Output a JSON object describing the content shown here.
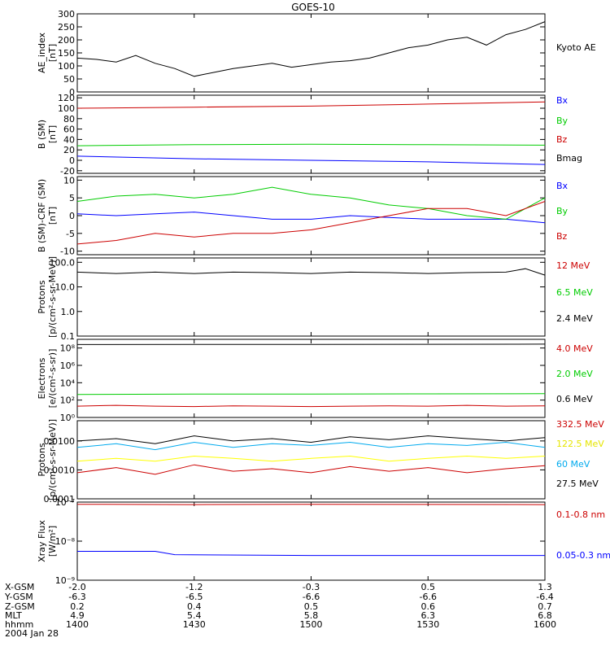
{
  "title": "GOES-10",
  "chart_data": [
    {
      "type": "line",
      "ylabel": [
        "AE_index",
        "[nT]"
      ],
      "ylim": [
        0,
        300
      ],
      "yticks": [
        "0",
        "50",
        "100",
        "150",
        "200",
        "250",
        "300"
      ],
      "yticks_values": [
        0,
        50,
        100,
        150,
        200,
        250,
        300
      ],
      "series": [
        {
          "name": "Kyoto AE",
          "color": "#000000",
          "x": [
            1400,
            1405,
            1410,
            1415,
            1420,
            1425,
            1430,
            1435,
            1440,
            1445,
            1450,
            1455,
            1500,
            1505,
            1510,
            1515,
            1520,
            1525,
            1530,
            1535,
            1540,
            1545,
            1550,
            1555,
            1600
          ],
          "y": [
            130,
            125,
            115,
            140,
            110,
            90,
            60,
            75,
            90,
            100,
            110,
            95,
            105,
            115,
            120,
            130,
            150,
            170,
            180,
            200,
            210,
            180,
            220,
            240,
            270
          ]
        }
      ]
    },
    {
      "type": "line",
      "ylabel": [
        "B (SM)",
        "[nT]"
      ],
      "ylim": [
        -25,
        125
      ],
      "yticks": [
        "-20",
        "0",
        "20",
        "40",
        "60",
        "80",
        "100",
        "120"
      ],
      "yticks_values": [
        -20,
        0,
        20,
        40,
        60,
        80,
        100,
        120
      ],
      "series": [
        {
          "name": "Bx",
          "color": "#0000ff",
          "x": [
            1400,
            1430,
            1500,
            1530,
            1600
          ],
          "y": [
            8,
            3,
            0,
            -3,
            -8
          ]
        },
        {
          "name": "By",
          "color": "#00cc00",
          "x": [
            1400,
            1430,
            1500,
            1530,
            1600
          ],
          "y": [
            28,
            30,
            31,
            30,
            29
          ]
        },
        {
          "name": "Bz",
          "color": "#cc0000",
          "x": [
            1400,
            1430,
            1500,
            1530,
            1600
          ],
          "y": [
            100,
            102,
            104,
            108,
            112
          ]
        },
        {
          "name": "Bmag",
          "color": "#000000",
          "x": [],
          "y": []
        }
      ]
    },
    {
      "type": "line",
      "ylabel": [
        "B (SM)-CRF (SM)",
        "[nT]"
      ],
      "ylim": [
        -11,
        11
      ],
      "yticks": [
        "-10",
        "-5",
        "0",
        "5",
        "10"
      ],
      "yticks_values": [
        -10,
        -5,
        0,
        5,
        10
      ],
      "series": [
        {
          "name": "Bx",
          "color": "#0000ff",
          "x": [
            1400,
            1410,
            1420,
            1430,
            1440,
            1450,
            1500,
            1510,
            1520,
            1530,
            1540,
            1550,
            1600
          ],
          "y": [
            0.5,
            0,
            0.5,
            1,
            0,
            -1,
            -1,
            0,
            -0.5,
            -1,
            -1,
            -1,
            -2
          ]
        },
        {
          "name": "By",
          "color": "#00cc00",
          "x": [
            1400,
            1410,
            1420,
            1430,
            1440,
            1450,
            1500,
            1510,
            1520,
            1530,
            1540,
            1550,
            1600
          ],
          "y": [
            4,
            5.5,
            6,
            5,
            6,
            8,
            6,
            5,
            3,
            2,
            0,
            -1,
            5
          ]
        },
        {
          "name": "Bz",
          "color": "#cc0000",
          "x": [
            1400,
            1410,
            1420,
            1430,
            1440,
            1450,
            1500,
            1510,
            1520,
            1530,
            1540,
            1550,
            1600
          ],
          "y": [
            -8,
            -7,
            -5,
            -6,
            -5,
            -5,
            -4,
            -2,
            0,
            2,
            2,
            0,
            4
          ]
        }
      ]
    },
    {
      "type": "line",
      "ylabel": [
        "Protons",
        "[p/(cm²-s-sr-MeV)]"
      ],
      "yscale": "log",
      "ylim": [
        0.1,
        150
      ],
      "yticks": [
        "0.1",
        "1.0",
        "10.0",
        "100.0"
      ],
      "yticks_values": [
        0.1,
        1,
        10,
        100
      ],
      "series": [
        {
          "name": "12 MeV",
          "color": "#cc0000",
          "x": [],
          "y": []
        },
        {
          "name": "6.5 MeV",
          "color": "#00cc00",
          "x": [],
          "y": []
        },
        {
          "name": "2.4 MeV",
          "color": "#000000",
          "x": [
            1400,
            1410,
            1420,
            1430,
            1440,
            1450,
            1500,
            1510,
            1520,
            1530,
            1540,
            1550,
            1555,
            1600
          ],
          "y": [
            40,
            35,
            40,
            35,
            40,
            38,
            35,
            40,
            38,
            35,
            38,
            40,
            55,
            30
          ]
        }
      ]
    },
    {
      "type": "line",
      "ylabel": [
        "Electrons",
        "[e/(cm²-s-sr)]"
      ],
      "yscale": "log",
      "ylim": [
        1,
        1000000000
      ],
      "yticks": [
        "10⁰",
        "10²",
        "10⁴",
        "10⁶",
        "10⁸"
      ],
      "yticks_values": [
        1,
        100,
        10000,
        1000000,
        100000000
      ],
      "series": [
        {
          "name": "4.0 MeV",
          "color": "#cc0000",
          "x": [
            1400,
            1410,
            1420,
            1430,
            1440,
            1450,
            1500,
            1510,
            1520,
            1530,
            1540,
            1550,
            1600
          ],
          "y": [
            20,
            25,
            20,
            18,
            22,
            20,
            18,
            20,
            22,
            20,
            25,
            20,
            22
          ]
        },
        {
          "name": "2.0 MeV",
          "color": "#00cc00",
          "x": [
            1400,
            1430,
            1500,
            1530,
            1600
          ],
          "y": [
            450,
            500,
            500,
            520,
            550
          ]
        },
        {
          "name": "0.6 MeV",
          "color": "#000000",
          "x": [
            1400,
            1430,
            1500,
            1530,
            1600
          ],
          "y": [
            250000000,
            260000000,
            260000000,
            270000000,
            280000000
          ]
        }
      ]
    },
    {
      "type": "line",
      "ylabel": [
        "Protons",
        "[p/(cm²-s-sr-MeV)]"
      ],
      "yscale": "log",
      "ylim": [
        0.0001,
        0.05
      ],
      "yticks": [
        "0.0001",
        "0.0010",
        "0.0100"
      ],
      "yticks_values": [
        0.0001,
        0.001,
        0.01
      ],
      "series": [
        {
          "name": "332.5 MeV",
          "color": "#cc0000",
          "x": [
            1400,
            1410,
            1420,
            1430,
            1440,
            1450,
            1500,
            1510,
            1520,
            1530,
            1540,
            1550,
            1600
          ],
          "y": [
            0.0008,
            0.0012,
            0.0007,
            0.0015,
            0.0009,
            0.0011,
            0.0008,
            0.0013,
            0.0009,
            0.0012,
            0.0008,
            0.0011,
            0.0014
          ]
        },
        {
          "name": "122.5 MeV",
          "color": "#ffff00",
          "x": [
            1400,
            1410,
            1420,
            1430,
            1440,
            1450,
            1500,
            1510,
            1520,
            1530,
            1540,
            1550,
            1600
          ],
          "y": [
            0.002,
            0.0025,
            0.002,
            0.003,
            0.0025,
            0.002,
            0.0025,
            0.003,
            0.002,
            0.0025,
            0.003,
            0.0025,
            0.003
          ]
        },
        {
          "name": "60 MeV",
          "color": "#00aaee",
          "x": [
            1400,
            1410,
            1420,
            1430,
            1440,
            1450,
            1500,
            1510,
            1520,
            1530,
            1540,
            1550,
            1600
          ],
          "y": [
            0.006,
            0.008,
            0.005,
            0.009,
            0.006,
            0.008,
            0.007,
            0.009,
            0.006,
            0.008,
            0.007,
            0.009,
            0.006
          ]
        },
        {
          "name": "27.5 MeV",
          "color": "#000000",
          "x": [
            1400,
            1410,
            1420,
            1430,
            1440,
            1450,
            1500,
            1510,
            1520,
            1530,
            1540,
            1550,
            1600
          ],
          "y": [
            0.01,
            0.012,
            0.008,
            0.015,
            0.01,
            0.012,
            0.009,
            0.014,
            0.011,
            0.015,
            0.012,
            0.01,
            0.013
          ]
        }
      ]
    },
    {
      "type": "line",
      "ylabel": [
        "Xray Flux",
        "[W/m²]"
      ],
      "yscale": "log",
      "ylim": [
        1e-09,
        1e-07
      ],
      "yticks": [
        "10⁻⁹",
        "10⁻⁸",
        "10⁻⁷"
      ],
      "yticks_values": [
        1e-09,
        1e-08,
        1e-07
      ],
      "series": [
        {
          "name": "0.1-0.8 nm",
          "color": "#cc0000",
          "x": [
            1400,
            1430,
            1500,
            1530,
            1600
          ],
          "y": [
            8.8e-08,
            8.6e-08,
            8.8e-08,
            8.7e-08,
            8.6e-08
          ]
        },
        {
          "name": "0.05-0.3 nm",
          "color": "#0000ff",
          "x": [
            1400,
            1420,
            1425,
            1500,
            1550,
            1600
          ],
          "y": [
            5.5e-09,
            5.5e-09,
            4.5e-09,
            4.3e-09,
            4.3e-09,
            4.3e-09
          ]
        }
      ]
    }
  ],
  "x_axis": {
    "labels": [
      "X-GSM",
      "Y-GSM",
      "Z-GSM",
      "MLT",
      "hhmm",
      "2004 Jan 28"
    ],
    "columns": [
      [
        "-2.0",
        "-6.3",
        "0.2",
        "4.9",
        "1400"
      ],
      [
        "-1.2",
        "-6.5",
        "0.4",
        "5.4",
        "1430"
      ],
      [
        "-0.3",
        "-6.6",
        "0.5",
        "5.8",
        "1500"
      ],
      [
        "0.5",
        "-6.6",
        "0.6",
        "6.3",
        "1530"
      ],
      [
        "1.3",
        "-6.4",
        "0.7",
        "6.8",
        "1600"
      ]
    ],
    "column_times": [
      1400,
      1430,
      1500,
      1530,
      1600
    ]
  }
}
